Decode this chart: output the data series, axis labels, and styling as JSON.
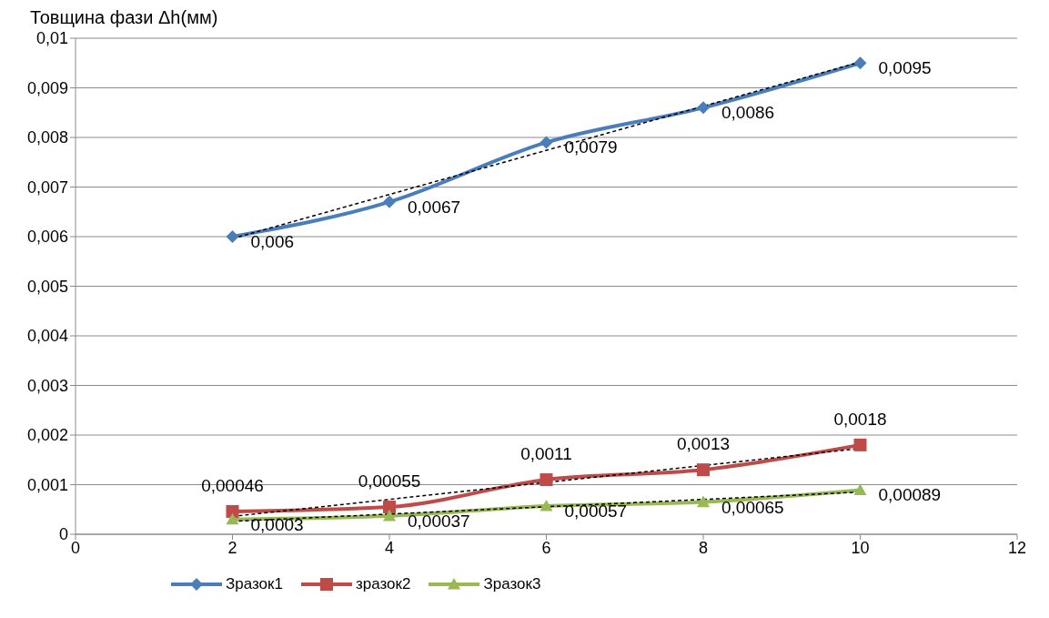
{
  "chart_data": {
    "type": "line",
    "ylabel": "Товщина фази Δh(мм)",
    "xlim": [
      0,
      12
    ],
    "xticks": [
      0,
      2,
      4,
      6,
      8,
      10,
      12
    ],
    "ylim": [
      0,
      0.01
    ],
    "yticks": [
      {
        "value": 0,
        "label": "0"
      },
      {
        "value": 0.001,
        "label": "0,001"
      },
      {
        "value": 0.002,
        "label": "0,002"
      },
      {
        "value": 0.003,
        "label": "0,003"
      },
      {
        "value": 0.004,
        "label": "0,004"
      },
      {
        "value": 0.005,
        "label": "0,005"
      },
      {
        "value": 0.006,
        "label": "0,006"
      },
      {
        "value": 0.007,
        "label": "0,007"
      },
      {
        "value": 0.008,
        "label": "0,008"
      },
      {
        "value": 0.009,
        "label": "0,009"
      },
      {
        "value": 0.01,
        "label": "0,01"
      }
    ],
    "grid": "y",
    "legend": "bottom",
    "series": [
      {
        "name": "Зразок1",
        "color": "#4a7ebb",
        "marker": "diamond",
        "x": [
          2,
          4,
          6,
          8,
          10
        ],
        "values": [
          0.006,
          0.0067,
          0.0079,
          0.0086,
          0.0095
        ],
        "value_labels": [
          "0,006",
          "0,0067",
          "0,0079",
          "0,0086",
          "0,0095"
        ]
      },
      {
        "name": "зразок2",
        "color": "#be4b48",
        "marker": "square",
        "x": [
          2,
          4,
          6,
          8,
          10
        ],
        "values": [
          0.00046,
          0.00055,
          0.0011,
          0.0013,
          0.0018
        ],
        "value_labels": [
          "0,00046",
          "0,00055",
          "0,0011",
          "0,0013",
          "0,0018"
        ]
      },
      {
        "name": "Зразок3",
        "color": "#98b954",
        "marker": "triangle",
        "x": [
          2,
          4,
          6,
          8,
          10
        ],
        "values": [
          0.0003,
          0.00037,
          0.00057,
          0.00065,
          0.00089
        ],
        "value_labels": [
          "0,0003",
          "0,00037",
          "0,00057",
          "0,00065",
          "0,00089"
        ]
      },
      {
        "type": "line",
        "color": "#000000",
        "line_style": "dashed",
        "marker": "none",
        "x": [
          2,
          10
        ],
        "values": [
          0.00596,
          0.00952
        ]
      },
      {
        "type": "line",
        "color": "#000000",
        "line_style": "dashed",
        "marker": "none",
        "x": [
          2,
          10
        ],
        "values": [
          0.00036,
          0.00173
        ]
      },
      {
        "type": "line",
        "color": "#000000",
        "line_style": "dashed",
        "marker": "none",
        "x": [
          2,
          10
        ],
        "values": [
          0.00026,
          0.00085
        ]
      }
    ]
  }
}
